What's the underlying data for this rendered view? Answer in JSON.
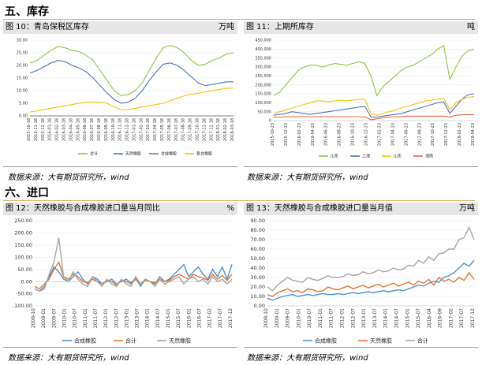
{
  "sections": {
    "s5": "五、库存",
    "s6": "六、进口"
  },
  "panels": [
    {
      "title": "图 10：青岛保税区库存",
      "unit": "万吨",
      "source": "数据来源：大有期货研究所，wind"
    },
    {
      "title": "图 11：上期所库存",
      "unit": "吨",
      "source": "数据来源：大有期货研究所，wind"
    },
    {
      "title": "图 12：天然橡胶与合成橡胶进口量当月同比",
      "unit": "%",
      "source": "数据来源：大有期货研究所，wind"
    },
    {
      "title": "图 13：天然橡胶与合成橡胶进口量当月值",
      "unit": "万吨",
      "source": "数据来源：大有期货研究所，wind"
    }
  ],
  "chart_data": [
    {
      "type": "line",
      "title": "图 10：青岛保税区库存",
      "ylim": [
        0,
        30
      ],
      "yticks": [
        "0.00",
        "5.00",
        "10.00",
        "15.00",
        "20.00",
        "25.00",
        "30.00"
      ],
      "xticks": [
        "2015-10-18",
        "2015-11-18",
        "2015-12-18",
        "2016-01-18",
        "2016-02-18",
        "2016-03-18",
        "2016-04-18",
        "2016-05-18",
        "2016-06-18",
        "2016-07-18",
        "2016-08-18",
        "2016-09-18",
        "2016-10-18",
        "2016-11-18",
        "2016-12-18",
        "2017-01-18",
        "2017-02-18",
        "2017-03-18",
        "2017-04-18",
        "2017-05-18",
        "2017-06-18",
        "2017-07-18",
        "2017-08-18",
        "2017-09-18",
        "2017-10-18",
        "2017-11-18",
        "2017-12-18",
        "2018-01-18",
        "2018-02-18",
        "2018-03-18"
      ],
      "series": [
        {
          "name": "合计",
          "color": "#8dc63f",
          "values": [
            21,
            22,
            24,
            26,
            27.5,
            27,
            26,
            25.5,
            24,
            22,
            18,
            14,
            10,
            8,
            8.5,
            10,
            13,
            18,
            23,
            27,
            28,
            27,
            25,
            22,
            20,
            20.5,
            22,
            23,
            24.5,
            25
          ]
        },
        {
          "name": "天然橡胶",
          "color": "#4a72c4",
          "values": [
            17,
            18,
            19.5,
            21,
            22,
            21.5,
            20,
            19,
            17.5,
            15,
            12,
            9,
            6.5,
            5,
            5.5,
            7,
            10,
            14,
            17.5,
            20.5,
            21,
            20,
            18,
            15.5,
            13,
            12,
            12.5,
            13,
            13.5,
            13.5
          ]
        },
        {
          "name": "合成橡胶",
          "color": "#7f7f7f",
          "values": [
            0,
            0,
            0,
            0,
            0,
            0,
            0,
            0,
            0,
            0,
            0,
            0,
            0,
            0,
            0,
            0,
            0,
            0,
            0,
            0,
            0,
            0,
            0,
            0,
            0,
            0,
            0,
            0,
            0,
            0
          ]
        },
        {
          "name": "复合橡胶",
          "color": "#f5c400",
          "values": [
            1.5,
            2,
            2.5,
            3,
            3.5,
            4,
            4.5,
            5,
            5.5,
            5.5,
            5.5,
            5,
            3.5,
            2.5,
            2.5,
            3,
            3.5,
            4,
            4.5,
            5,
            6,
            7,
            8,
            8.5,
            9,
            9.5,
            10,
            10.5,
            11,
            11
          ]
        }
      ]
    },
    {
      "type": "line",
      "title": "图 11：上期所库存",
      "ylim": [
        0,
        450000
      ],
      "yticks": [
        "0",
        "50,000",
        "100,000",
        "150,000",
        "200,000",
        "250,000",
        "300,000",
        "350,000",
        "400,000",
        "450,000"
      ],
      "xticks": [
        "2015-10-23",
        "2015-12-23",
        "2016-02-23",
        "2016-04-23",
        "2016-06-23",
        "2016-08-23",
        "2016-10-23",
        "2016-12-23",
        "2017-02-23",
        "2017-04-23",
        "2017-06-23",
        "2017-08-23",
        "2017-10-23",
        "2017-12-23",
        "2018-02-23",
        "2018-04-23"
      ],
      "series": [
        {
          "name": "山东",
          "color": "#8dc63f",
          "values": [
            140000,
            160000,
            200000,
            240000,
            280000,
            300000,
            310000,
            310000,
            300000,
            310000,
            320000,
            315000,
            310000,
            320000,
            330000,
            320000,
            250000,
            140000,
            190000,
            220000,
            250000,
            280000,
            300000,
            310000,
            330000,
            350000,
            370000,
            400000,
            420000,
            230000,
            300000,
            360000,
            390000,
            400000
          ]
        },
        {
          "name": "上海",
          "color": "#4a72c4",
          "values": [
            30000,
            35000,
            40000,
            50000,
            45000,
            40000,
            35000,
            40000,
            45000,
            50000,
            55000,
            60000,
            65000,
            70000,
            75000,
            80000,
            20000,
            20000,
            25000,
            30000,
            35000,
            40000,
            50000,
            60000,
            70000,
            80000,
            90000,
            100000,
            105000,
            40000,
            80000,
            120000,
            145000,
            150000
          ]
        },
        {
          "name": "山东",
          "color": "#f5c400",
          "values": [
            40000,
            50000,
            60000,
            70000,
            80000,
            90000,
            100000,
            110000,
            110000,
            105000,
            110000,
            115000,
            110000,
            115000,
            120000,
            120000,
            40000,
            30000,
            40000,
            50000,
            60000,
            70000,
            80000,
            90000,
            100000,
            110000,
            115000,
            120000,
            125000,
            60000,
            100000,
            120000,
            130000,
            135000
          ]
        },
        {
          "name": "海南",
          "color": "#e8643c",
          "values": [
            20000,
            20000,
            22000,
            22000,
            22000,
            22000,
            22000,
            22000,
            22000,
            22000,
            22000,
            22000,
            22000,
            22000,
            22000,
            22000,
            5000,
            10000,
            15000,
            20000,
            22000,
            22000,
            25000,
            25000,
            25000,
            25000,
            25000,
            25000,
            25000,
            20000,
            30000,
            32000,
            33000,
            33000
          ]
        }
      ]
    },
    {
      "type": "line",
      "title": "图 12：天然橡胶与合成橡胶进口量当月同比",
      "ylim": [
        -100,
        250
      ],
      "yticks": [
        "-100.00",
        "-50.00",
        "0.00",
        "50.00",
        "100.00",
        "150.00",
        "200.00",
        "250.00"
      ],
      "xticks": [
        "2008-10",
        "2009-01",
        "2009-07",
        "2010-01",
        "2010-07",
        "2011-01",
        "2011-07",
        "2012-01",
        "2012-07",
        "2013-01",
        "2013-07",
        "2014-01",
        "2014-07",
        "2015-01",
        "2015-07",
        "2016-01",
        "2016-07",
        "2017-02",
        "2017-07",
        "2017-12"
      ],
      "series": [
        {
          "name": "合成橡胶",
          "color": "#4a90d9",
          "values": [
            -30,
            -40,
            -20,
            20,
            60,
            40,
            10,
            0,
            20,
            40,
            10,
            -10,
            20,
            10,
            -10,
            0,
            10,
            -10,
            0,
            10,
            -5,
            15,
            -20,
            10,
            0,
            -10,
            20,
            0,
            10,
            30,
            50,
            70,
            20,
            40,
            60,
            30,
            10,
            50,
            20,
            60,
            10,
            70
          ]
        },
        {
          "name": "合计",
          "color": "#e8732e",
          "values": [
            -20,
            -30,
            -10,
            10,
            50,
            80,
            20,
            10,
            30,
            20,
            0,
            -5,
            10,
            0,
            -10,
            5,
            0,
            -15,
            5,
            0,
            -10,
            10,
            -10,
            5,
            0,
            -5,
            10,
            0,
            5,
            20,
            30,
            20,
            10,
            30,
            20,
            15,
            5,
            30,
            10,
            25,
            5,
            30
          ]
        },
        {
          "name": "天然橡胶",
          "color": "#a6a6a6",
          "values": [
            -30,
            -40,
            -30,
            30,
            80,
            180,
            20,
            0,
            40,
            10,
            -10,
            -20,
            20,
            0,
            -20,
            10,
            -10,
            -20,
            10,
            -10,
            -20,
            20,
            -10,
            10,
            0,
            -20,
            10,
            -10,
            0,
            10,
            20,
            -10,
            10,
            20,
            0,
            10,
            -10,
            20,
            0,
            10,
            -10,
            10
          ]
        }
      ]
    },
    {
      "type": "line",
      "title": "图 13：天然橡胶与合成橡胶进口量当月值",
      "ylim": [
        0,
        90
      ],
      "yticks": [
        "0.00",
        "10.00",
        "20.00",
        "30.00",
        "40.00",
        "50.00",
        "60.00",
        "70.00",
        "80.00",
        "90.00"
      ],
      "xticks": [
        "2008-10",
        "2009-01",
        "2009-07",
        "2010-01",
        "2010-07",
        "2011-01",
        "2011-07",
        "2012-01",
        "2012-07",
        "2013-01",
        "2013-07",
        "2014-01",
        "2014-07",
        "2015-01",
        "2015-07",
        "2016-04",
        "2016-09",
        "2017-02",
        "2017-07",
        "2017-12"
      ],
      "series": [
        {
          "name": "合成橡胶",
          "color": "#4a90d9",
          "values": [
            8,
            6,
            8,
            10,
            11,
            12,
            10,
            11,
            12,
            11,
            12,
            13,
            12,
            12,
            13,
            12,
            13,
            14,
            13,
            14,
            15,
            14,
            15,
            16,
            15,
            16,
            17,
            16,
            18,
            20,
            22,
            21,
            24,
            26,
            25,
            30,
            32,
            35,
            40,
            45,
            42,
            48
          ]
        },
        {
          "name": "天然橡胶",
          "color": "#e8732e",
          "values": [
            12,
            10,
            14,
            16,
            18,
            15,
            16,
            14,
            18,
            17,
            15,
            16,
            20,
            18,
            17,
            19,
            21,
            18,
            20,
            22,
            19,
            21,
            23,
            20,
            22,
            24,
            21,
            23,
            25,
            22,
            26,
            24,
            28,
            22,
            30,
            26,
            28,
            25,
            30,
            27,
            35,
            28
          ]
        },
        {
          "name": "合计",
          "color": "#a6a6a6",
          "values": [
            20,
            16,
            22,
            26,
            30,
            27,
            26,
            25,
            30,
            28,
            27,
            29,
            32,
            30,
            30,
            31,
            34,
            32,
            33,
            36,
            34,
            35,
            38,
            36,
            37,
            40,
            38,
            39,
            43,
            42,
            48,
            45,
            52,
            48,
            55,
            56,
            60,
            60,
            70,
            72,
            83,
            70
          ]
        }
      ]
    }
  ]
}
